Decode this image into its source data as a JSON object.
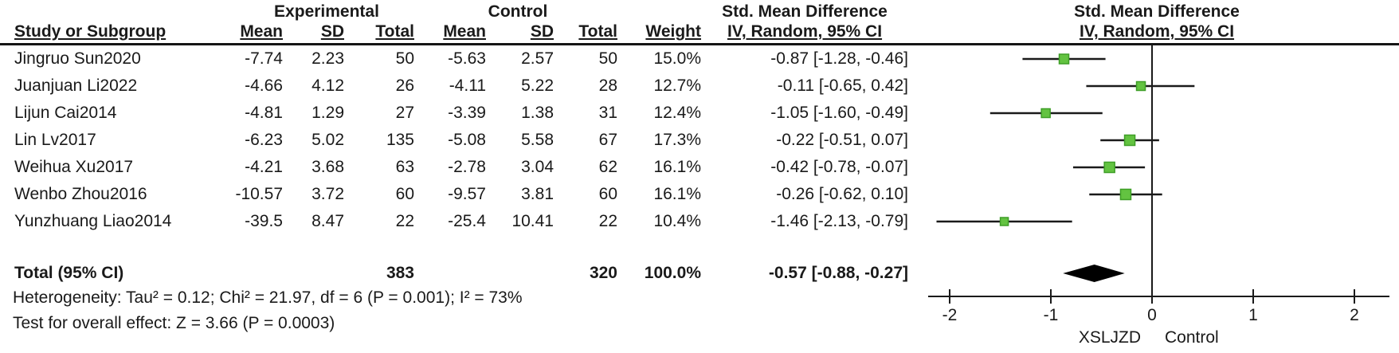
{
  "headers": {
    "experimental": "Experimental",
    "control": "Control",
    "smd": "Std. Mean Difference",
    "iv_random": "IV, Random, 95% CI",
    "study_or_subgroup": "Study or Subgroup",
    "mean": "Mean",
    "sd": "SD",
    "total": "Total",
    "weight": "Weight"
  },
  "table": {
    "rows": [
      {
        "study": "Jingruo Sun2020",
        "exp_mean": "-7.74",
        "exp_sd": "2.23",
        "exp_total": "50",
        "ctl_mean": "-5.63",
        "ctl_sd": "2.57",
        "ctl_total": "50",
        "weight": "15.0%",
        "ci_text": "-0.87 [-1.28, -0.46]"
      },
      {
        "study": "Juanjuan Li2022",
        "exp_mean": "-4.66",
        "exp_sd": "4.12",
        "exp_total": "26",
        "ctl_mean": "-4.11",
        "ctl_sd": "5.22",
        "ctl_total": "28",
        "weight": "12.7%",
        "ci_text": "-0.11 [-0.65, 0.42]"
      },
      {
        "study": "Lijun Cai2014",
        "exp_mean": "-4.81",
        "exp_sd": "1.29",
        "exp_total": "27",
        "ctl_mean": "-3.39",
        "ctl_sd": "1.38",
        "ctl_total": "31",
        "weight": "12.4%",
        "ci_text": "-1.05 [-1.60, -0.49]"
      },
      {
        "study": "Lin Lv2017",
        "exp_mean": "-6.23",
        "exp_sd": "5.02",
        "exp_total": "135",
        "ctl_mean": "-5.08",
        "ctl_sd": "5.58",
        "ctl_total": "67",
        "weight": "17.3%",
        "ci_text": "-0.22 [-0.51, 0.07]"
      },
      {
        "study": "Weihua Xu2017",
        "exp_mean": "-4.21",
        "exp_sd": "3.68",
        "exp_total": "63",
        "ctl_mean": "-2.78",
        "ctl_sd": "3.04",
        "ctl_total": "62",
        "weight": "16.1%",
        "ci_text": "-0.42 [-0.78, -0.07]"
      },
      {
        "study": "Wenbo Zhou2016",
        "exp_mean": "-10.57",
        "exp_sd": "3.72",
        "exp_total": "60",
        "ctl_mean": "-9.57",
        "ctl_sd": "3.81",
        "ctl_total": "60",
        "weight": "16.1%",
        "ci_text": "-0.26 [-0.62, 0.10]"
      },
      {
        "study": "Yunzhuang Liao2014",
        "exp_mean": "-39.5",
        "exp_sd": "8.47",
        "exp_total": "22",
        "ctl_mean": "-25.4",
        "ctl_sd": "10.41",
        "ctl_total": "22",
        "weight": "10.4%",
        "ci_text": "-1.46 [-2.13, -0.79]"
      }
    ],
    "total": {
      "label": "Total (95% CI)",
      "exp_total": "383",
      "ctl_total": "320",
      "weight": "100.0%",
      "ci_text": "-0.57 [-0.88, -0.27]"
    },
    "heterogeneity": "Heterogeneity: Tau² = 0.12; Chi² = 21.97, df = 6 (P = 0.001); I² = 73%",
    "overall_effect": "Test for overall effect: Z = 3.66 (P = 0.0003)"
  },
  "chart_data": {
    "type": "forest",
    "title": "Std. Mean Difference",
    "effect_label": "IV, Random, 95% CI",
    "studies": [
      {
        "name": "Jingruo Sun2020",
        "est": -0.87,
        "lo": -1.28,
        "hi": -0.46,
        "weight": 15.0
      },
      {
        "name": "Juanjuan Li2022",
        "est": -0.11,
        "lo": -0.65,
        "hi": 0.42,
        "weight": 12.7
      },
      {
        "name": "Lijun Cai2014",
        "est": -1.05,
        "lo": -1.6,
        "hi": -0.49,
        "weight": 12.4
      },
      {
        "name": "Lin Lv2017",
        "est": -0.22,
        "lo": -0.51,
        "hi": 0.07,
        "weight": 17.3
      },
      {
        "name": "Weihua Xu2017",
        "est": -0.42,
        "lo": -0.78,
        "hi": -0.07,
        "weight": 16.1
      },
      {
        "name": "Wenbo Zhou2016",
        "est": -0.26,
        "lo": -0.62,
        "hi": 0.1,
        "weight": 16.1
      },
      {
        "name": "Yunzhuang Liao2014",
        "est": -1.46,
        "lo": -2.13,
        "hi": -0.79,
        "weight": 10.4
      }
    ],
    "overall": {
      "label": "Total (95% CI)",
      "est": -0.57,
      "lo": -0.88,
      "hi": -0.27,
      "weight": 100.0
    },
    "axis": {
      "xlim": [
        -2.3,
        2.3
      ],
      "ticks": [
        "-2",
        "-1",
        "0",
        "1",
        "2"
      ],
      "tick_values": [
        -2,
        -1,
        0,
        1,
        2
      ],
      "left_label": "XSLJZD",
      "right_label": "Control",
      "grid": false
    },
    "colors": {
      "marker_fill": "#63C341",
      "marker_stroke": "#3E9E27",
      "line": "#1A1A1A"
    }
  }
}
